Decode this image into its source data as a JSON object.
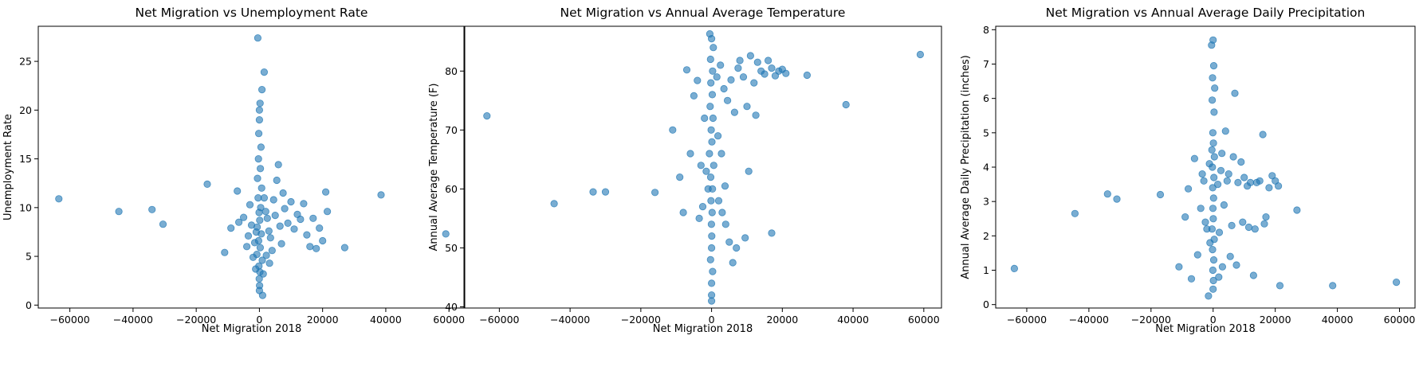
{
  "colors": {
    "point": "#1f77b4",
    "axis": "#000000",
    "background": "#ffffff"
  },
  "chart_data": [
    {
      "type": "scatter",
      "title": "Net Migration vs Unemployment Rate",
      "xlabel": "Net Migration 2018",
      "ylabel": "Unemployment Rate",
      "xlim": [
        -70000,
        65000
      ],
      "ylim": [
        -0.3,
        28.6
      ],
      "xticks": [
        -60000,
        -40000,
        -20000,
        0,
        20000,
        40000,
        60000
      ],
      "yticks": [
        0,
        5,
        10,
        15,
        20,
        25
      ],
      "xtick_labels": [
        "−60000",
        "−40000",
        "−20000",
        "0",
        "20000",
        "40000",
        "60000"
      ],
      "ytick_labels": [
        "0",
        "5",
        "10",
        "15",
        "20",
        "25"
      ],
      "grid": false,
      "points": [
        [
          -63500,
          10.9
        ],
        [
          -44500,
          9.6
        ],
        [
          -34000,
          9.8
        ],
        [
          -30500,
          8.3
        ],
        [
          -16500,
          12.4
        ],
        [
          -11000,
          5.4
        ],
        [
          -9000,
          7.9
        ],
        [
          -7000,
          11.7
        ],
        [
          -6500,
          8.5
        ],
        [
          -5000,
          9.0
        ],
        [
          -4000,
          6.0
        ],
        [
          -3000,
          10.3
        ],
        [
          -2000,
          4.9
        ],
        [
          -1000,
          7.5
        ],
        [
          -500,
          27.4
        ],
        [
          0,
          20.0
        ],
        [
          0,
          19.0
        ],
        [
          -200,
          17.6
        ],
        [
          500,
          16.2
        ],
        [
          1500,
          23.9
        ],
        [
          800,
          22.1
        ],
        [
          200,
          20.7
        ],
        [
          -300,
          15.0
        ],
        [
          300,
          14.0
        ],
        [
          -600,
          13.0
        ],
        [
          700,
          12.0
        ],
        [
          -400,
          11.0
        ],
        [
          400,
          10.0
        ],
        [
          -100,
          9.5
        ],
        [
          100,
          8.7
        ],
        [
          -700,
          8.0
        ],
        [
          600,
          7.3
        ],
        [
          -250,
          6.6
        ],
        [
          250,
          5.9
        ],
        [
          -800,
          5.2
        ],
        [
          900,
          4.6
        ],
        [
          -150,
          4.0
        ],
        [
          150,
          3.4
        ],
        [
          -50,
          2.7
        ],
        [
          50,
          2.0
        ],
        [
          0,
          1.5
        ],
        [
          1000,
          1.0
        ],
        [
          1500,
          11.0
        ],
        [
          2000,
          9.6
        ],
        [
          2500,
          8.9
        ],
        [
          3000,
          7.6
        ],
        [
          3500,
          6.9
        ],
        [
          4000,
          5.6
        ],
        [
          4500,
          10.8
        ],
        [
          5000,
          9.2
        ],
        [
          5500,
          12.8
        ],
        [
          6000,
          14.4
        ],
        [
          6500,
          8.1
        ],
        [
          7000,
          6.3
        ],
        [
          7500,
          11.5
        ],
        [
          8000,
          9.9
        ],
        [
          9000,
          8.4
        ],
        [
          10000,
          10.6
        ],
        [
          11000,
          7.8
        ],
        [
          12000,
          9.3
        ],
        [
          13000,
          8.8
        ],
        [
          14000,
          10.4
        ],
        [
          15000,
          7.2
        ],
        [
          16000,
          6.0
        ],
        [
          17000,
          8.9
        ],
        [
          18000,
          5.8
        ],
        [
          19000,
          7.9
        ],
        [
          20000,
          6.6
        ],
        [
          21000,
          11.6
        ],
        [
          21500,
          9.6
        ],
        [
          27000,
          5.9
        ],
        [
          38500,
          11.3
        ],
        [
          59000,
          7.3
        ],
        [
          -2500,
          8.2
        ],
        [
          -1500,
          6.4
        ],
        [
          -3500,
          7.1
        ],
        [
          2200,
          5.1
        ],
        [
          3200,
          4.3
        ],
        [
          1200,
          3.2
        ],
        [
          -1200,
          3.7
        ]
      ]
    },
    {
      "type": "scatter",
      "title": "Net Migration vs Annual Average Temperature",
      "xlabel": "Net Migration 2018",
      "ylabel": "Annual Average Temperature (F)",
      "xlim": [
        -70000,
        65000
      ],
      "ylim": [
        39.8,
        87.6
      ],
      "xticks": [
        -60000,
        -40000,
        -20000,
        0,
        20000,
        40000,
        60000
      ],
      "yticks": [
        40,
        50,
        60,
        70,
        80
      ],
      "xtick_labels": [
        "−60000",
        "−40000",
        "−20000",
        "0",
        "20000",
        "40000",
        "60000"
      ],
      "ytick_labels": [
        "40",
        "50",
        "60",
        "70",
        "80"
      ],
      "grid": false,
      "points": [
        [
          -63500,
          72.4
        ],
        [
          -44500,
          57.5
        ],
        [
          -33500,
          59.5
        ],
        [
          -30000,
          59.5
        ],
        [
          -16000,
          59.4
        ],
        [
          -11000,
          70.0
        ],
        [
          -9000,
          62.0
        ],
        [
          -8000,
          56.0
        ],
        [
          -7000,
          80.2
        ],
        [
          -6000,
          66.0
        ],
        [
          -5000,
          75.8
        ],
        [
          -4000,
          78.4
        ],
        [
          -3000,
          64.0
        ],
        [
          -2000,
          72.0
        ],
        [
          -1000,
          60.0
        ],
        [
          -500,
          86.3
        ],
        [
          0,
          85.5
        ],
        [
          500,
          84.0
        ],
        [
          -300,
          82.0
        ],
        [
          300,
          80.0
        ],
        [
          -200,
          78.0
        ],
        [
          200,
          76.0
        ],
        [
          -400,
          74.0
        ],
        [
          400,
          72.0
        ],
        [
          -100,
          70.0
        ],
        [
          100,
          68.0
        ],
        [
          -600,
          66.0
        ],
        [
          600,
          64.0
        ],
        [
          -250,
          62.0
        ],
        [
          250,
          60.0
        ],
        [
          -150,
          58.0
        ],
        [
          150,
          56.0
        ],
        [
          -50,
          54.0
        ],
        [
          50,
          52.0
        ],
        [
          0,
          50.0
        ],
        [
          -300,
          48.0
        ],
        [
          300,
          46.0
        ],
        [
          0,
          44.0
        ],
        [
          0,
          42.0
        ],
        [
          0,
          41.0
        ],
        [
          1500,
          79.0
        ],
        [
          2500,
          81.0
        ],
        [
          3500,
          77.0
        ],
        [
          4500,
          75.0
        ],
        [
          5500,
          78.5
        ],
        [
          6500,
          73.0
        ],
        [
          7500,
          80.5
        ],
        [
          8000,
          81.8
        ],
        [
          9000,
          79.0
        ],
        [
          10000,
          74.0
        ],
        [
          11000,
          82.6
        ],
        [
          12000,
          78.0
        ],
        [
          13000,
          81.5
        ],
        [
          14000,
          80.0
        ],
        [
          15000,
          79.5
        ],
        [
          16000,
          81.8
        ],
        [
          17000,
          80.5
        ],
        [
          18000,
          79.2
        ],
        [
          19000,
          80.0
        ],
        [
          20000,
          80.3
        ],
        [
          21000,
          79.6
        ],
        [
          10500,
          63.0
        ],
        [
          12500,
          72.5
        ],
        [
          9500,
          51.7
        ],
        [
          17000,
          52.5
        ],
        [
          2000,
          58.0
        ],
        [
          3000,
          56.0
        ],
        [
          4000,
          54.0
        ],
        [
          5000,
          51.0
        ],
        [
          6000,
          47.5
        ],
        [
          7000,
          50.0
        ],
        [
          27000,
          79.3
        ],
        [
          38000,
          74.3
        ],
        [
          59000,
          82.8
        ],
        [
          2800,
          66.0
        ],
        [
          -1500,
          63.0
        ],
        [
          -2500,
          57.0
        ],
        [
          1800,
          69.0
        ],
        [
          3800,
          60.5
        ],
        [
          -3500,
          55.0
        ]
      ]
    },
    {
      "type": "scatter",
      "title": "Net Migration vs Annual Average Daily Precipitation",
      "xlabel": "Net Migration 2018",
      "ylabel": "Annual Average Daily Precipitation (inches)",
      "xlim": [
        -70000,
        65000
      ],
      "ylim": [
        -0.1,
        8.1
      ],
      "xticks": [
        -60000,
        -40000,
        -20000,
        0,
        20000,
        40000,
        60000
      ],
      "yticks": [
        0,
        1,
        2,
        3,
        4,
        5,
        6,
        7,
        8
      ],
      "xtick_labels": [
        "−60000",
        "−40000",
        "−20000",
        "0",
        "20000",
        "40000",
        "60000"
      ],
      "ytick_labels": [
        "0",
        "1",
        "2",
        "3",
        "4",
        "5",
        "6",
        "7",
        "8"
      ],
      "grid": false,
      "points": [
        [
          -64000,
          1.05
        ],
        [
          -44500,
          2.65
        ],
        [
          -34000,
          3.22
        ],
        [
          -31000,
          3.07
        ],
        [
          -17000,
          3.2
        ],
        [
          -11000,
          1.1
        ],
        [
          -9000,
          2.55
        ],
        [
          -8000,
          3.37
        ],
        [
          -7000,
          0.75
        ],
        [
          -6000,
          4.25
        ],
        [
          -5000,
          1.45
        ],
        [
          -4000,
          2.8
        ],
        [
          -3000,
          3.6
        ],
        [
          -2000,
          2.2
        ],
        [
          -1000,
          1.8
        ],
        [
          0,
          7.7
        ],
        [
          -500,
          7.55
        ],
        [
          200,
          6.95
        ],
        [
          -200,
          6.6
        ],
        [
          500,
          6.3
        ],
        [
          -300,
          5.95
        ],
        [
          300,
          5.6
        ],
        [
          -100,
          5.0
        ],
        [
          100,
          4.7
        ],
        [
          -400,
          4.5
        ],
        [
          400,
          4.3
        ],
        [
          -250,
          4.0
        ],
        [
          250,
          3.7
        ],
        [
          -150,
          3.4
        ],
        [
          150,
          3.1
        ],
        [
          -50,
          2.8
        ],
        [
          50,
          2.5
        ],
        [
          -350,
          2.2
        ],
        [
          350,
          1.9
        ],
        [
          -200,
          1.6
        ],
        [
          200,
          1.3
        ],
        [
          -100,
          1.0
        ],
        [
          100,
          0.7
        ],
        [
          0,
          0.45
        ],
        [
          -1500,
          0.25
        ],
        [
          1500,
          3.5
        ],
        [
          2500,
          3.9
        ],
        [
          3500,
          2.9
        ],
        [
          4500,
          3.6
        ],
        [
          5500,
          1.4
        ],
        [
          6500,
          4.3
        ],
        [
          7000,
          6.15
        ],
        [
          8000,
          3.55
        ],
        [
          9000,
          4.15
        ],
        [
          10000,
          3.7
        ],
        [
          11000,
          3.45
        ],
        [
          12000,
          3.55
        ],
        [
          13000,
          0.85
        ],
        [
          14000,
          3.55
        ],
        [
          15000,
          3.6
        ],
        [
          16000,
          4.95
        ],
        [
          17000,
          2.55
        ],
        [
          18000,
          3.4
        ],
        [
          19000,
          3.75
        ],
        [
          20000,
          3.6
        ],
        [
          21000,
          3.45
        ],
        [
          21500,
          0.55
        ],
        [
          27000,
          2.75
        ],
        [
          38500,
          0.55
        ],
        [
          59000,
          0.65
        ],
        [
          2000,
          2.1
        ],
        [
          3000,
          1.1
        ],
        [
          4000,
          5.05
        ],
        [
          5000,
          3.8
        ],
        [
          6000,
          2.3
        ],
        [
          7500,
          1.15
        ],
        [
          9500,
          2.4
        ],
        [
          11500,
          2.25
        ],
        [
          13500,
          2.2
        ],
        [
          16500,
          2.35
        ],
        [
          -2500,
          2.4
        ],
        [
          -3500,
          3.8
        ],
        [
          1800,
          0.8
        ],
        [
          2800,
          4.4
        ],
        [
          -1200,
          4.1
        ]
      ]
    }
  ]
}
